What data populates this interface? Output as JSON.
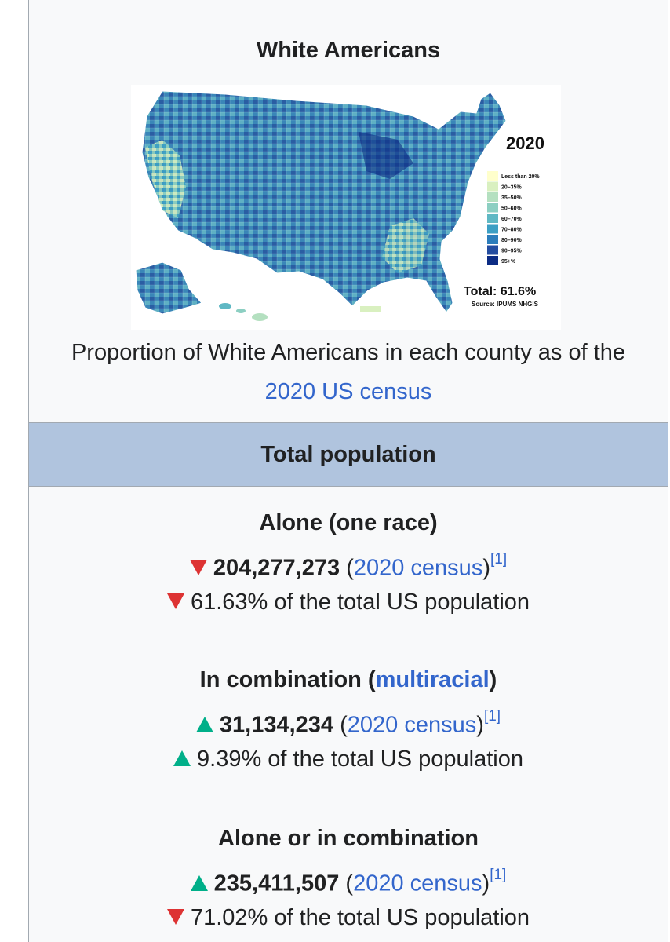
{
  "infobox": {
    "title": "White Americans",
    "map": {
      "year_label": "2020",
      "legend": [
        "Less than 20%",
        "20–35%",
        "35–50%",
        "50–60%",
        "60–70%",
        "70–80%",
        "80–90%",
        "90–95%",
        "95+%"
      ],
      "legend_colors": [
        "#ffffcc",
        "#d9f0c0",
        "#b4e0c0",
        "#8ccfc2",
        "#5fb8c4",
        "#3c9fc4",
        "#2c7dbb",
        "#244da0",
        "#0c2c84"
      ],
      "total_label": "Total: 61.6%",
      "source_label": "Source: IPUMS NHGIS"
    },
    "caption": {
      "text": "Proportion of White Americans in each county as of the",
      "link": "2020 US census"
    },
    "section_header": "Total population",
    "groups": [
      {
        "label": "Alone (one race)",
        "label_link": "",
        "label_suffix": "",
        "count": "204,277,273",
        "count_trend": "down",
        "source_link": "2020 census",
        "ref": "[1]",
        "percent_text": "61.63% of the total US population",
        "percent_trend": "down"
      },
      {
        "label": "In combination (",
        "label_link": "multiracial",
        "label_suffix": ")",
        "count": "31,134,234",
        "count_trend": "up",
        "source_link": "2020 census",
        "ref": "[1]",
        "percent_text": "9.39% of the total US population",
        "percent_trend": "up"
      },
      {
        "label": "Alone or in combination",
        "label_link": "",
        "label_suffix": "",
        "count": "235,411,507",
        "count_trend": "up",
        "source_link": "2020 census",
        "ref": "[1]",
        "percent_text": "71.02% of the total US population",
        "percent_trend": "down"
      }
    ]
  }
}
